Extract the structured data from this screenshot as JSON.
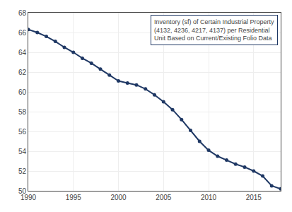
{
  "chart_data": {
    "type": "line",
    "x": [
      1990,
      1991,
      1992,
      1993,
      1994,
      1995,
      1996,
      1997,
      1998,
      1999,
      2000,
      2001,
      2002,
      2003,
      2004,
      2005,
      2006,
      2007,
      2008,
      2009,
      2010,
      2011,
      2012,
      2013,
      2014,
      2015,
      2016,
      2017,
      2018
    ],
    "values": [
      66.3,
      66.0,
      65.6,
      65.1,
      64.5,
      64.0,
      63.4,
      62.9,
      62.3,
      61.7,
      61.1,
      60.9,
      60.7,
      60.3,
      59.7,
      59.0,
      58.2,
      57.2,
      56.1,
      55.0,
      54.1,
      53.5,
      53.1,
      52.7,
      52.4,
      52.0,
      51.5,
      50.5,
      50.2
    ],
    "color": "#1f3864",
    "marker": "circle",
    "xlim": [
      1990,
      2018
    ],
    "ylim": [
      50,
      68
    ],
    "xticks": [
      1990,
      1995,
      2000,
      2005,
      2010,
      2015
    ],
    "yticks": [
      50,
      52,
      54,
      56,
      58,
      60,
      62,
      64,
      66,
      68
    ],
    "grid": true,
    "annotations": [
      "Inventory (sf) of Certain Industrial Property\n(4132, 4236, 4217, 4137) per Residential\nUnit Based on Current/Existing Folio Data"
    ]
  }
}
